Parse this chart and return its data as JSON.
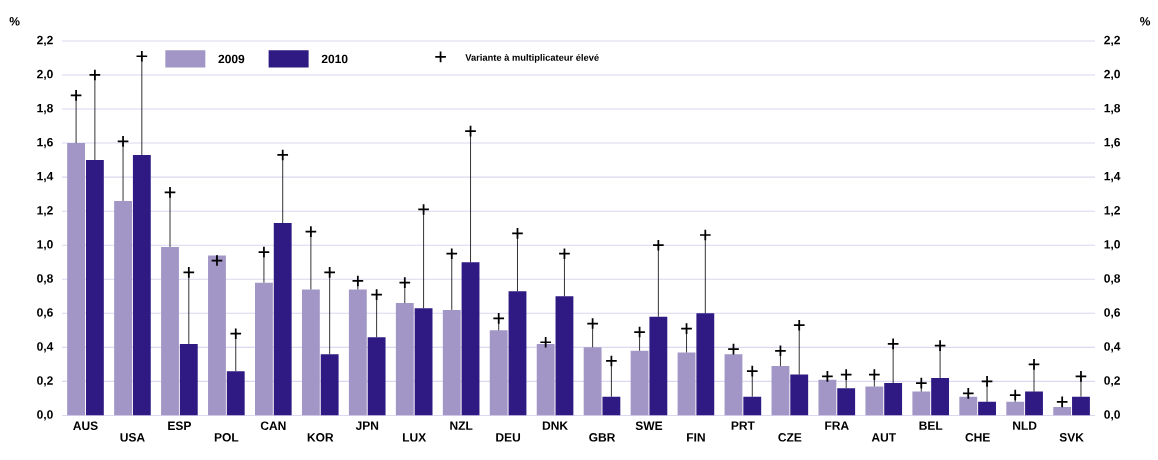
{
  "chart_data": {
    "type": "bar",
    "ylabel": "%",
    "y2label": "%",
    "categories": [
      "AUS",
      "USA",
      "ESP",
      "POL",
      "CAN",
      "KOR",
      "JPN",
      "LUX",
      "NZL",
      "DEU",
      "DNK",
      "GBR",
      "SWE",
      "FIN",
      "PRT",
      "CZE",
      "FRA",
      "AUT",
      "BEL",
      "CHE",
      "NLD",
      "SVK"
    ],
    "series": [
      {
        "name": "2009",
        "color": "#a296c6",
        "values": [
          1.6,
          1.26,
          0.99,
          0.94,
          0.78,
          0.74,
          0.74,
          0.66,
          0.62,
          0.5,
          0.42,
          0.4,
          0.38,
          0.37,
          0.36,
          0.29,
          0.21,
          0.17,
          0.14,
          0.11,
          0.08,
          0.05
        ],
        "errors": [
          [
            1.6,
            1.88
          ],
          [
            1.26,
            1.61
          ],
          [
            0.99,
            1.31
          ],
          [
            0.91,
            0.94
          ],
          [
            0.78,
            0.96
          ],
          [
            0.74,
            1.08
          ],
          [
            0.74,
            0.79
          ],
          [
            0.66,
            0.78
          ],
          [
            0.62,
            0.95
          ],
          [
            0.5,
            0.57
          ],
          [
            0.42,
            0.43
          ],
          [
            0.4,
            0.54
          ],
          [
            0.38,
            0.49
          ],
          [
            0.37,
            0.51
          ],
          [
            0.36,
            0.39
          ],
          [
            0.29,
            0.38
          ],
          [
            0.21,
            0.23
          ],
          [
            0.17,
            0.24
          ],
          [
            0.14,
            0.19
          ],
          [
            0.11,
            0.13
          ],
          [
            0.08,
            0.12
          ],
          [
            0.05,
            0.08
          ]
        ]
      },
      {
        "name": "2010",
        "color": "#2e1a82",
        "values": [
          1.5,
          1.53,
          0.42,
          0.26,
          1.13,
          0.36,
          0.46,
          0.63,
          0.9,
          0.73,
          0.7,
          0.11,
          0.58,
          0.6,
          0.11,
          0.24,
          0.16,
          0.19,
          0.22,
          0.08,
          0.14,
          0.11
        ],
        "errors": [
          [
            1.5,
            2.0
          ],
          [
            1.53,
            2.11
          ],
          [
            0.42,
            0.84
          ],
          [
            0.26,
            0.48
          ],
          [
            1.13,
            1.53
          ],
          [
            0.36,
            0.84
          ],
          [
            0.46,
            0.71
          ],
          [
            0.63,
            1.21
          ],
          [
            0.9,
            1.67
          ],
          [
            0.73,
            1.07
          ],
          [
            0.7,
            0.95
          ],
          [
            0.11,
            0.32
          ],
          [
            0.58,
            1.0
          ],
          [
            0.6,
            1.06
          ],
          [
            0.11,
            0.26
          ],
          [
            0.24,
            0.53
          ],
          [
            0.16,
            0.24
          ],
          [
            0.19,
            0.42
          ],
          [
            0.22,
            0.41
          ],
          [
            0.08,
            0.2
          ],
          [
            0.14,
            0.3
          ],
          [
            0.11,
            0.23
          ]
        ]
      }
    ],
    "annotations": [
      "Variante à multiplicateur élevé"
    ],
    "ylim": [
      0,
      2.2
    ],
    "yticks": [
      {
        "value": 0,
        "label": "0,0"
      },
      {
        "value": 0.2,
        "label": "0,2"
      },
      {
        "value": 0.4,
        "label": "0,4"
      },
      {
        "value": 0.6,
        "label": "0,6"
      },
      {
        "value": 0.8,
        "label": "0,8"
      },
      {
        "value": 1.0,
        "label": "1,0"
      },
      {
        "value": 1.2,
        "label": "1,2"
      },
      {
        "value": 1.4,
        "label": "1,4"
      },
      {
        "value": 1.6,
        "label": "1,6"
      },
      {
        "value": 1.8,
        "label": "1,8"
      },
      {
        "value": 2.0,
        "label": "2,0"
      },
      {
        "value": 2.2,
        "label": "2,2"
      }
    ],
    "y2lim": [
      0,
      2.2
    ],
    "y2ticks": [
      {
        "value": 0,
        "label": "0,0"
      },
      {
        "value": 0.2,
        "label": "0,2"
      },
      {
        "value": 0.4,
        "label": "0,4"
      },
      {
        "value": 0.6,
        "label": "0,6"
      },
      {
        "value": 0.8,
        "label": "0,8"
      },
      {
        "value": 1.0,
        "label": "1,0"
      },
      {
        "value": 1.2,
        "label": "1,2"
      },
      {
        "value": 1.4,
        "label": "1,4"
      },
      {
        "value": 1.6,
        "label": "1,6"
      },
      {
        "value": 1.8,
        "label": "1,8"
      },
      {
        "value": 2.0,
        "label": "2,0"
      },
      {
        "value": 2.2,
        "label": "2,2"
      }
    ],
    "grid": "y",
    "legend": "top"
  }
}
